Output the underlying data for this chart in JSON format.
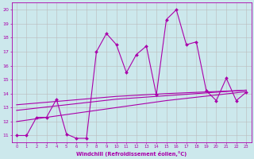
{
  "x": [
    0,
    1,
    2,
    3,
    4,
    5,
    6,
    7,
    8,
    9,
    10,
    11,
    12,
    13,
    14,
    15,
    16,
    17,
    18,
    19,
    20,
    21,
    22,
    23
  ],
  "main_line": [
    11.0,
    11.0,
    12.3,
    12.3,
    13.6,
    11.1,
    10.8,
    10.8,
    17.0,
    18.3,
    17.5,
    15.5,
    16.8,
    17.4,
    13.9,
    19.3,
    20.0,
    17.5,
    17.7,
    14.2,
    13.5,
    15.1,
    13.5,
    14.1
  ],
  "trend1": [
    12.8,
    12.88,
    12.96,
    13.04,
    13.12,
    13.2,
    13.28,
    13.36,
    13.44,
    13.52,
    13.6,
    13.65,
    13.7,
    13.75,
    13.8,
    13.85,
    13.9,
    13.95,
    14.0,
    14.05,
    14.1,
    14.15,
    14.2,
    14.25
  ],
  "trend2": [
    13.2,
    13.26,
    13.32,
    13.38,
    13.44,
    13.5,
    13.56,
    13.62,
    13.68,
    13.74,
    13.8,
    13.84,
    13.88,
    13.92,
    13.96,
    14.0,
    14.03,
    14.06,
    14.09,
    14.12,
    14.15,
    14.18,
    14.21,
    14.24
  ],
  "trend3": [
    12.0,
    12.1,
    12.2,
    12.3,
    12.4,
    12.5,
    12.6,
    12.7,
    12.8,
    12.9,
    13.0,
    13.1,
    13.2,
    13.3,
    13.4,
    13.5,
    13.58,
    13.66,
    13.74,
    13.82,
    13.9,
    13.98,
    14.06,
    14.14
  ],
  "line_color": "#aa00aa",
  "bg_color": "#cce8ec",
  "grid_color": "#bbbbbb",
  "xlabel": "Windchill (Refroidissement éolien,°C)",
  "xlim": [
    -0.5,
    23.5
  ],
  "ylim": [
    10.5,
    20.5
  ],
  "yticks": [
    11,
    12,
    13,
    14,
    15,
    16,
    17,
    18,
    19,
    20
  ],
  "xticks": [
    0,
    1,
    2,
    3,
    4,
    5,
    6,
    7,
    8,
    9,
    10,
    11,
    12,
    13,
    14,
    15,
    16,
    17,
    18,
    19,
    20,
    21,
    22,
    23
  ]
}
